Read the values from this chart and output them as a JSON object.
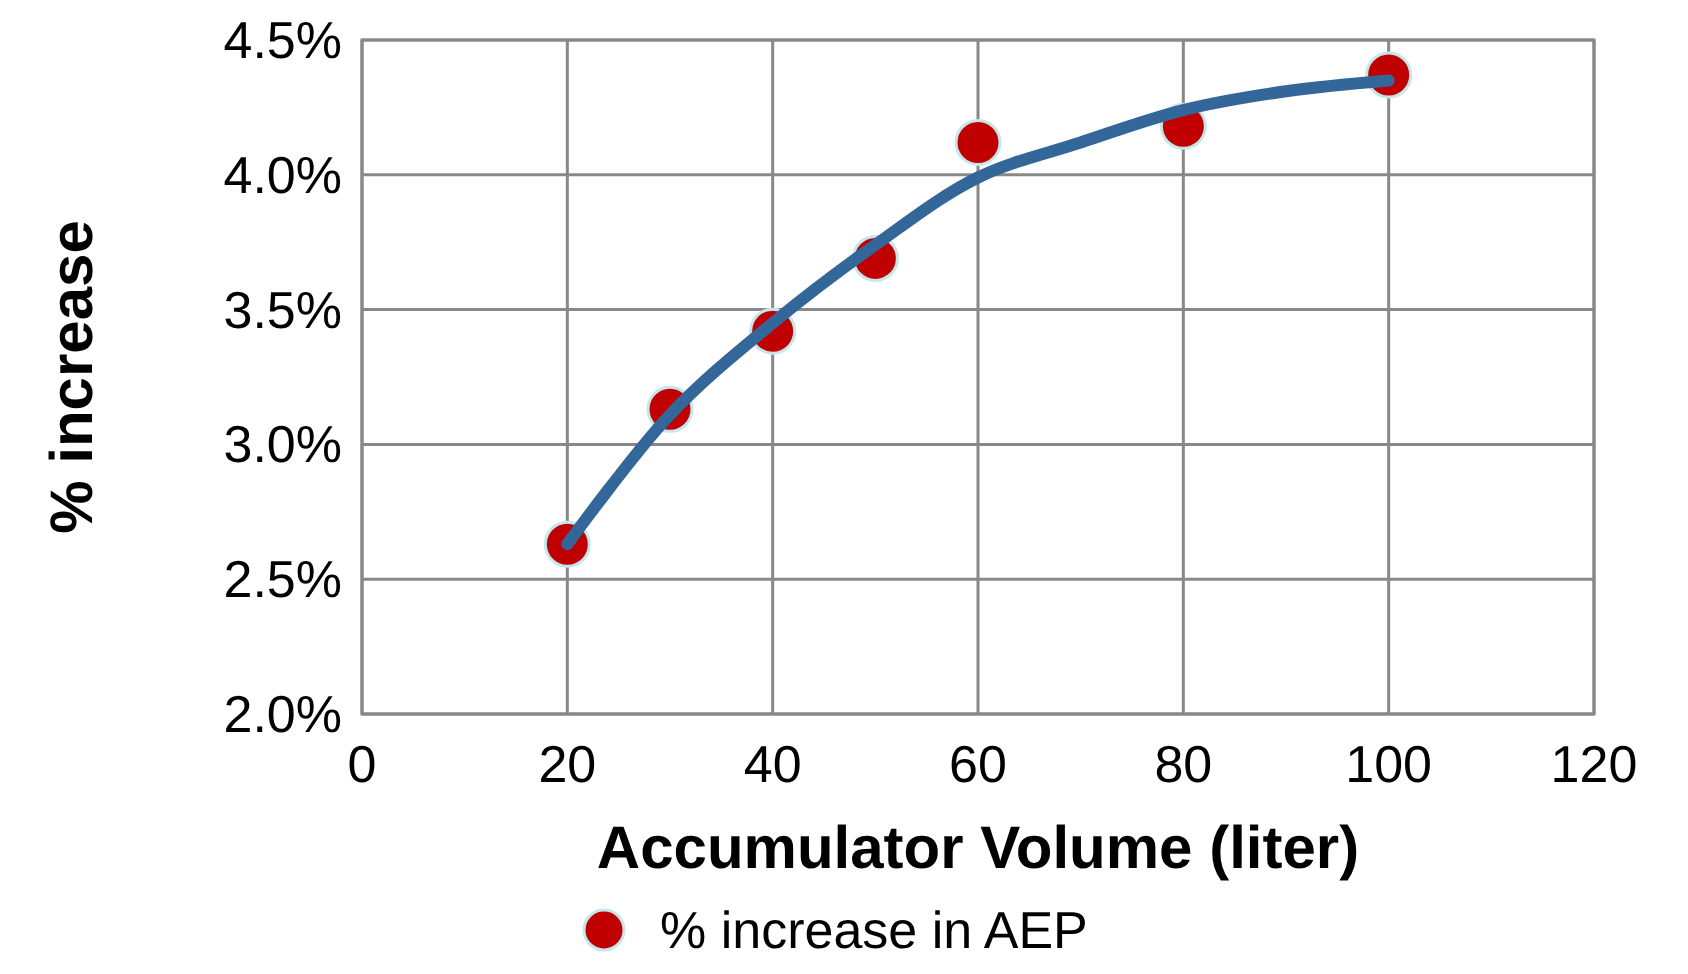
{
  "chart_data": {
    "type": "scatter",
    "xlabel": "Accumulator Volume (liter)",
    "ylabel": "% increase",
    "xlim": [
      0,
      120
    ],
    "xticks": [
      0,
      20,
      40,
      60,
      80,
      100,
      120
    ],
    "ylim": [
      2.0,
      4.5
    ],
    "yticks": [
      {
        "value": 2.0,
        "label": "2.0%"
      },
      {
        "value": 2.5,
        "label": "2.5%"
      },
      {
        "value": 3.0,
        "label": "3.0%"
      },
      {
        "value": 3.5,
        "label": "3.5%"
      },
      {
        "value": 4.0,
        "label": "4.0%"
      },
      {
        "value": 4.5,
        "label": "4.5%"
      }
    ],
    "grid": true,
    "legend": "bottom",
    "marker": "circle",
    "series": [
      {
        "type": "line",
        "marker": "none",
        "color": "#336699",
        "x": [
          20,
          30,
          40,
          50,
          60,
          70,
          80,
          90,
          100
        ],
        "values": [
          2.63,
          3.11,
          3.45,
          3.74,
          3.99,
          4.12,
          4.24,
          4.31,
          4.35
        ]
      },
      {
        "name": "% increase in AEP",
        "color": "#c00000",
        "x": [
          20,
          30,
          40,
          50,
          60,
          80,
          100
        ],
        "values": [
          2.63,
          3.13,
          3.42,
          3.69,
          4.12,
          4.18,
          4.37
        ]
      }
    ]
  }
}
